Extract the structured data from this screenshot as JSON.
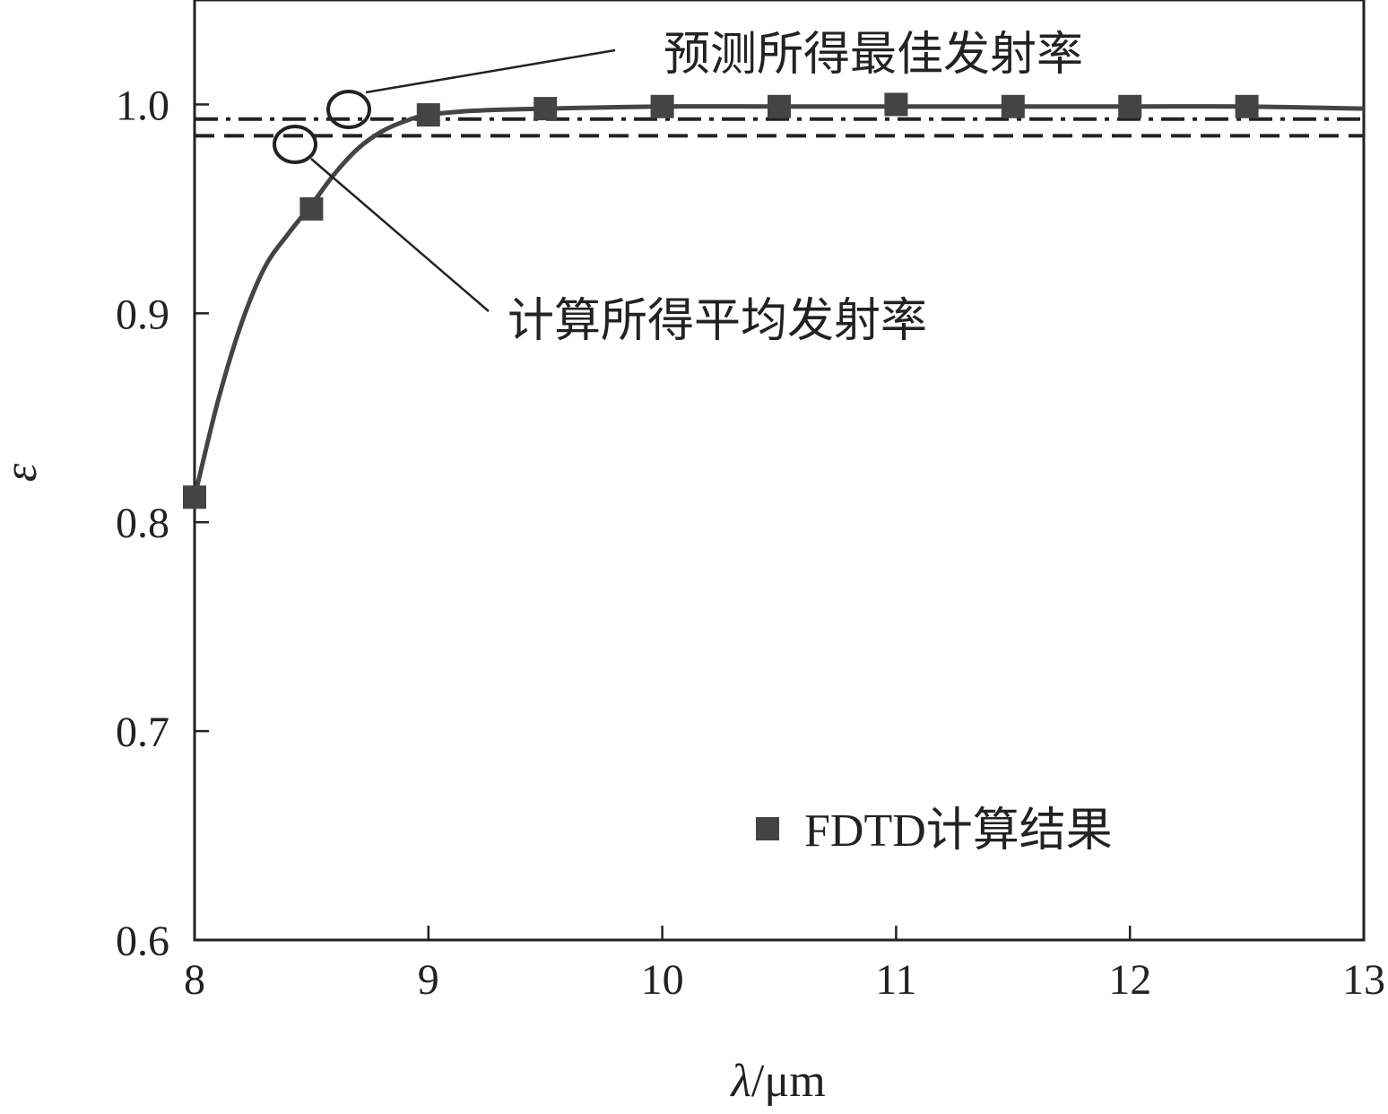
{
  "chart_data": {
    "type": "line",
    "xlabel_symbol": "λ",
    "xlabel_unit": "/μm",
    "ylabel": "ε",
    "xlim": [
      8,
      13
    ],
    "ylim": [
      0.6,
      1.05
    ],
    "xticks": [
      8,
      9,
      10,
      11,
      12,
      13
    ],
    "xtick_labels": [
      "8",
      "9",
      "10",
      "11",
      "12",
      "13"
    ],
    "yticks": [
      0.6,
      0.7,
      0.8,
      0.9,
      1.0
    ],
    "ytick_labels": [
      "0.6",
      "0.7",
      "0.8",
      "0.9",
      "1.0"
    ],
    "grid": false,
    "series": [
      {
        "name": "FDTD计算结果",
        "marker": "square",
        "x": [
          8.0,
          8.5,
          9.0,
          9.5,
          10.0,
          10.5,
          11.0,
          11.5,
          12.0,
          12.5
        ],
        "y": [
          0.812,
          0.95,
          0.995,
          0.998,
          0.999,
          0.999,
          1.0,
          0.999,
          0.999,
          0.999
        ]
      }
    ],
    "fit_curve": {
      "x": [
        8.0,
        8.1,
        8.2,
        8.3,
        8.4,
        8.5,
        8.6,
        8.7,
        8.8,
        8.9,
        9.0,
        9.2,
        9.5,
        10.0,
        10.5,
        11.0,
        11.5,
        12.0,
        12.5,
        13.0
      ],
      "y": [
        0.812,
        0.858,
        0.895,
        0.922,
        0.938,
        0.952,
        0.967,
        0.979,
        0.987,
        0.992,
        0.995,
        0.997,
        0.998,
        0.999,
        0.999,
        0.999,
        0.999,
        0.999,
        0.999,
        0.998
      ]
    },
    "reference_lines": [
      {
        "label": "预测所得最佳发射率",
        "y": 0.993,
        "style": "dash-dot"
      },
      {
        "label": "计算所得平均发射率",
        "y": 0.985,
        "style": "dashed"
      }
    ],
    "legend_position": "lower-right",
    "colors": {
      "series": "#444444",
      "axis": "#222222"
    }
  }
}
